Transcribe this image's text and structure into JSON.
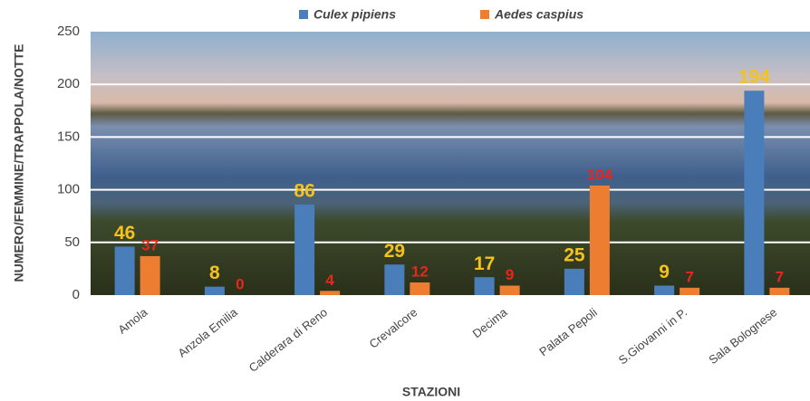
{
  "chart_data": {
    "type": "bar",
    "y_label": "NUMERO/FEMMINE/TRAPPOLA/NOTTE",
    "x_label": "STAZIONI",
    "categories": [
      "Amola",
      "Anzola Emilia",
      "Calderara di Reno",
      "Crevalcore",
      "Decima",
      "Palata Pepoli",
      "S.Giovanni in P.",
      "Sala Bolognese"
    ],
    "series": [
      {
        "name": "Culex pipiens",
        "color": "#4a7ebb",
        "label_color": "#f5c21b",
        "values": [
          46,
          8,
          86,
          29,
          17,
          25,
          9,
          194
        ]
      },
      {
        "name": "Aedes caspius",
        "color": "#ed7d31",
        "label_color": "#e8261c",
        "values": [
          37,
          0,
          4,
          12,
          9,
          104,
          7,
          7
        ]
      }
    ],
    "ylim": [
      0,
      250
    ],
    "yticks": [
      0,
      50,
      100,
      150,
      200,
      250
    ],
    "grid": true,
    "legend": "top"
  }
}
